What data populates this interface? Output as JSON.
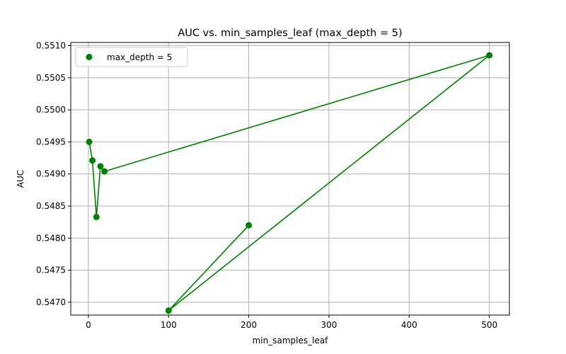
{
  "chart_data": {
    "type": "line",
    "title": "AUC vs. min_samples_leaf (max_depth = 5)",
    "xlabel": "min_samples_leaf",
    "ylabel": "AUC",
    "xlim": [
      -22,
      525
    ],
    "ylim": [
      0.5468,
      0.55105
    ],
    "xticks": [
      0,
      100,
      200,
      300,
      400,
      500
    ],
    "yticks": [
      0.547,
      0.5475,
      0.548,
      0.5485,
      0.549,
      0.5495,
      0.55,
      0.5505,
      0.551
    ],
    "ytick_labels": [
      "0.5470",
      "0.5475",
      "0.5480",
      "0.5485",
      "0.5490",
      "0.5495",
      "0.5500",
      "0.5505",
      "0.5510"
    ],
    "grid": true,
    "legend_position": "top-left",
    "series": [
      {
        "name": "max_depth = 5",
        "color": "#008000",
        "marker": "circle",
        "x": [
          1,
          5,
          10,
          15,
          20,
          500,
          100,
          200
        ],
        "y": [
          0.5495,
          0.54921,
          0.54833,
          0.54912,
          0.54904,
          0.55085,
          0.54687,
          0.5482
        ]
      }
    ]
  }
}
